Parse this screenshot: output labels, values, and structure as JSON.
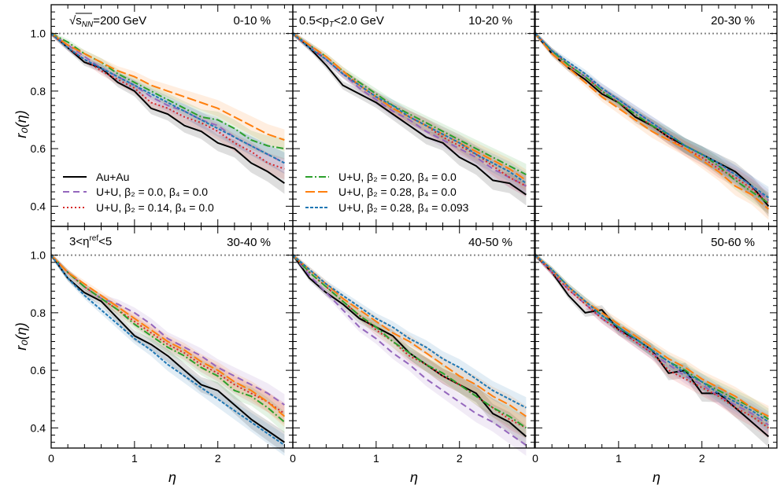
{
  "figure": {
    "header_left": "√s",
    "header_sub": "NN",
    "header_right": "=200 GeV",
    "pt_text": "0.5<p",
    "pt_sub": "T",
    "pt_tail": "<2.0 GeV",
    "eta_ref_pre": "3<η",
    "eta_ref_sup": "ref",
    "eta_ref_tail": "<5",
    "xlabel": "η",
    "ylabel": "r₀(η)"
  },
  "legend": {
    "left": [
      "Au+Au",
      "U+U, β₂ = 0.0,  β₄ = 0.0",
      "U+U, β₂ = 0.14,  β₄ = 0.0"
    ],
    "right": [
      "U+U, β₂ = 0.20,  β₄ = 0.0",
      "U+U, β₂ = 0.28,  β₄ = 0.0",
      "U+U, β₂ = 0.28,  β₄ = 0.093"
    ]
  },
  "chart_data": {
    "type": "line",
    "title": "",
    "xlabel": "η",
    "ylabel": "r₀(η)",
    "xlim": [
      0,
      2.9
    ],
    "ylim": [
      0.33,
      1.1
    ],
    "x_ticks": [
      "0",
      "1",
      "2"
    ],
    "y_ticks": [
      "0.4",
      "0.6",
      "0.8",
      "1.0"
    ],
    "reference_line": 1.0,
    "x": [
      0,
      0.2,
      0.4,
      0.6,
      0.8,
      1.0,
      1.2,
      1.4,
      1.6,
      1.8,
      2.0,
      2.2,
      2.4,
      2.6,
      2.8
    ],
    "series_styles": [
      {
        "name": "Au+Au",
        "color": "#000000",
        "dash": ""
      },
      {
        "name": "U+U, β₂ = 0.0, β₄ = 0.0",
        "color": "#9467bd",
        "dash": "8,5"
      },
      {
        "name": "U+U, β₂ = 0.14, β₄ = 0.0",
        "color": "#d62728",
        "dash": "2,3"
      },
      {
        "name": "U+U, β₂ = 0.20, β₄ = 0.0",
        "color": "#2ca02c",
        "dash": "9,3,2,3"
      },
      {
        "name": "U+U, β₂ = 0.28, β₄ = 0.0",
        "color": "#ff7f0e",
        "dash": "12,4"
      },
      {
        "name": "U+U, β₂ = 0.28, β₄ = 0.093",
        "color": "#1f77b4",
        "dash": "4,2"
      }
    ],
    "panels": [
      {
        "centrality": "0-10 %",
        "series": [
          {
            "name": "Au+Au",
            "values": [
              1.0,
              0.95,
              0.9,
              0.88,
              0.83,
              0.8,
              0.74,
              0.72,
              0.68,
              0.66,
              0.62,
              0.6,
              0.55,
              0.52,
              0.48
            ]
          },
          {
            "name": "U+U, β₂ = 0.0, β₄ = 0.0",
            "values": [
              1.0,
              0.96,
              0.92,
              0.88,
              0.85,
              0.82,
              0.78,
              0.75,
              0.73,
              0.7,
              0.68,
              0.64,
              0.61,
              0.58,
              0.55
            ]
          },
          {
            "name": "U+U, β₂ = 0.14, β₄ = 0.0",
            "values": [
              1.0,
              0.95,
              0.91,
              0.87,
              0.84,
              0.81,
              0.76,
              0.74,
              0.71,
              0.69,
              0.66,
              0.62,
              0.59,
              0.55,
              0.53
            ]
          },
          {
            "name": "U+U, β₂ = 0.20, β₄ = 0.0",
            "values": [
              1.0,
              0.97,
              0.93,
              0.9,
              0.86,
              0.83,
              0.8,
              0.77,
              0.74,
              0.71,
              0.7,
              0.67,
              0.63,
              0.61,
              0.6
            ]
          },
          {
            "name": "U+U, β₂ = 0.28, β₄ = 0.0",
            "values": [
              1.0,
              0.96,
              0.93,
              0.9,
              0.87,
              0.85,
              0.82,
              0.8,
              0.78,
              0.76,
              0.74,
              0.71,
              0.68,
              0.65,
              0.63
            ]
          },
          {
            "name": "U+U, β₂ = 0.28, β₄ = 0.093",
            "values": [
              1.0,
              0.95,
              0.91,
              0.88,
              0.85,
              0.82,
              0.79,
              0.76,
              0.73,
              0.7,
              0.67,
              0.64,
              0.61,
              0.58,
              0.55
            ]
          }
        ]
      },
      {
        "centrality": "10-20 %",
        "series": [
          {
            "name": "Au+Au",
            "values": [
              1.0,
              0.95,
              0.89,
              0.82,
              0.79,
              0.76,
              0.72,
              0.68,
              0.64,
              0.62,
              0.57,
              0.54,
              0.49,
              0.48,
              0.44
            ]
          },
          {
            "name": "U+U, β₂ = 0.0, β₄ = 0.0",
            "values": [
              1.0,
              0.96,
              0.91,
              0.86,
              0.81,
              0.77,
              0.73,
              0.7,
              0.66,
              0.63,
              0.6,
              0.57,
              0.53,
              0.5,
              0.47
            ]
          },
          {
            "name": "U+U, β₂ = 0.14, β₄ = 0.0",
            "values": [
              1.0,
              0.95,
              0.91,
              0.86,
              0.82,
              0.78,
              0.74,
              0.71,
              0.68,
              0.64,
              0.61,
              0.58,
              0.54,
              0.5,
              0.47
            ]
          },
          {
            "name": "U+U, β₂ = 0.20, β₄ = 0.0",
            "values": [
              1.0,
              0.96,
              0.92,
              0.87,
              0.83,
              0.79,
              0.75,
              0.72,
              0.69,
              0.66,
              0.63,
              0.6,
              0.57,
              0.54,
              0.51
            ]
          },
          {
            "name": "U+U, β₂ = 0.28, β₄ = 0.0",
            "values": [
              1.0,
              0.96,
              0.92,
              0.87,
              0.82,
              0.78,
              0.74,
              0.71,
              0.68,
              0.65,
              0.62,
              0.59,
              0.56,
              0.53,
              0.49
            ]
          },
          {
            "name": "U+U, β₂ = 0.28, β₄ = 0.093",
            "values": [
              1.0,
              0.95,
              0.91,
              0.86,
              0.82,
              0.78,
              0.75,
              0.71,
              0.68,
              0.65,
              0.62,
              0.58,
              0.55,
              0.52,
              0.48
            ]
          }
        ]
      },
      {
        "centrality": "20-30 %",
        "series": [
          {
            "name": "Au+Au",
            "values": [
              1.0,
              0.93,
              0.88,
              0.84,
              0.79,
              0.76,
              0.71,
              0.68,
              0.64,
              0.61,
              0.58,
              0.55,
              0.52,
              0.47,
              0.4
            ]
          },
          {
            "name": "U+U, β₂ = 0.0, β₄ = 0.0",
            "values": [
              1.0,
              0.94,
              0.89,
              0.85,
              0.81,
              0.77,
              0.73,
              0.69,
              0.65,
              0.61,
              0.58,
              0.54,
              0.51,
              0.47,
              0.42
            ]
          },
          {
            "name": "U+U, β₂ = 0.14, β₄ = 0.0",
            "values": [
              1.0,
              0.94,
              0.89,
              0.85,
              0.8,
              0.76,
              0.72,
              0.68,
              0.64,
              0.6,
              0.57,
              0.53,
              0.5,
              0.46,
              0.41
            ]
          },
          {
            "name": "U+U, β₂ = 0.20, β₄ = 0.0",
            "values": [
              1.0,
              0.94,
              0.89,
              0.85,
              0.8,
              0.76,
              0.72,
              0.68,
              0.65,
              0.61,
              0.58,
              0.54,
              0.49,
              0.45,
              0.41
            ]
          },
          {
            "name": "U+U, β₂ = 0.28, β₄ = 0.0",
            "values": [
              1.0,
              0.93,
              0.88,
              0.83,
              0.78,
              0.74,
              0.7,
              0.66,
              0.63,
              0.6,
              0.56,
              0.52,
              0.47,
              0.44,
              0.39
            ]
          },
          {
            "name": "U+U, β₂ = 0.28, β₄ = 0.093",
            "values": [
              1.0,
              0.94,
              0.9,
              0.86,
              0.81,
              0.77,
              0.73,
              0.69,
              0.65,
              0.61,
              0.58,
              0.55,
              0.51,
              0.47,
              0.43
            ]
          }
        ]
      },
      {
        "centrality": "30-40 %",
        "series": [
          {
            "name": "Au+Au",
            "values": [
              1.0,
              0.92,
              0.87,
              0.84,
              0.78,
              0.72,
              0.69,
              0.65,
              0.6,
              0.55,
              0.53,
              0.48,
              0.43,
              0.39,
              0.35
            ]
          },
          {
            "name": "U+U, β₂ = 0.0, β₄ = 0.0",
            "values": [
              1.0,
              0.94,
              0.89,
              0.85,
              0.83,
              0.8,
              0.76,
              0.71,
              0.68,
              0.65,
              0.61,
              0.58,
              0.55,
              0.52,
              0.48
            ]
          },
          {
            "name": "U+U, β₂ = 0.14, β₄ = 0.0",
            "values": [
              1.0,
              0.94,
              0.89,
              0.85,
              0.81,
              0.77,
              0.73,
              0.69,
              0.66,
              0.62,
              0.59,
              0.55,
              0.52,
              0.49,
              0.45
            ]
          },
          {
            "name": "U+U, β₂ = 0.20, β₄ = 0.0",
            "values": [
              1.0,
              0.94,
              0.89,
              0.85,
              0.81,
              0.76,
              0.72,
              0.68,
              0.65,
              0.61,
              0.58,
              0.53,
              0.51,
              0.47,
              0.42
            ]
          },
          {
            "name": "U+U, β₂ = 0.28, β₄ = 0.0",
            "values": [
              1.0,
              0.94,
              0.9,
              0.86,
              0.82,
              0.78,
              0.74,
              0.7,
              0.67,
              0.63,
              0.6,
              0.56,
              0.53,
              0.49,
              0.44
            ]
          },
          {
            "name": "U+U, β₂ = 0.28, β₄ = 0.093",
            "values": [
              1.0,
              0.92,
              0.86,
              0.81,
              0.76,
              0.71,
              0.67,
              0.62,
              0.58,
              0.54,
              0.5,
              0.46,
              0.42,
              0.38,
              0.34
            ]
          }
        ]
      },
      {
        "centrality": "40-50 %",
        "series": [
          {
            "name": "Au+Au",
            "values": [
              1.0,
              0.92,
              0.87,
              0.83,
              0.78,
              0.75,
              0.72,
              0.66,
              0.62,
              0.58,
              0.55,
              0.52,
              0.45,
              0.42,
              0.37
            ]
          },
          {
            "name": "U+U, β₂ = 0.0, β₄ = 0.0",
            "values": [
              1.0,
              0.93,
              0.87,
              0.81,
              0.75,
              0.71,
              0.66,
              0.62,
              0.57,
              0.53,
              0.49,
              0.45,
              0.42,
              0.38,
              0.34
            ]
          },
          {
            "name": "U+U, β₂ = 0.14, β₄ = 0.0",
            "values": [
              1.0,
              0.94,
              0.89,
              0.84,
              0.79,
              0.74,
              0.7,
              0.65,
              0.62,
              0.58,
              0.55,
              0.51,
              0.47,
              0.43,
              0.4
            ]
          },
          {
            "name": "U+U, β₂ = 0.20, β₄ = 0.0",
            "values": [
              1.0,
              0.94,
              0.89,
              0.84,
              0.79,
              0.75,
              0.7,
              0.66,
              0.62,
              0.59,
              0.55,
              0.51,
              0.47,
              0.44,
              0.4
            ]
          },
          {
            "name": "U+U, β₂ = 0.28, β₄ = 0.0",
            "values": [
              1.0,
              0.95,
              0.9,
              0.85,
              0.81,
              0.77,
              0.73,
              0.7,
              0.66,
              0.62,
              0.58,
              0.55,
              0.51,
              0.48,
              0.44
            ]
          },
          {
            "name": "U+U, β₂ = 0.28, β₄ = 0.093",
            "values": [
              1.0,
              0.95,
              0.9,
              0.86,
              0.82,
              0.78,
              0.75,
              0.71,
              0.68,
              0.64,
              0.61,
              0.57,
              0.53,
              0.5,
              0.47
            ]
          }
        ]
      },
      {
        "centrality": "50-60 %",
        "series": [
          {
            "name": "Au+Au",
            "values": [
              1.0,
              0.94,
              0.86,
              0.8,
              0.81,
              0.74,
              0.71,
              0.67,
              0.59,
              0.6,
              0.52,
              0.52,
              0.47,
              0.42,
              0.37
            ]
          },
          {
            "name": "U+U, β₂ = 0.0, β₄ = 0.0",
            "values": [
              1.0,
              0.94,
              0.88,
              0.83,
              0.78,
              0.74,
              0.7,
              0.66,
              0.62,
              0.58,
              0.55,
              0.51,
              0.48,
              0.45,
              0.41
            ]
          },
          {
            "name": "U+U, β₂ = 0.14, β₄ = 0.0",
            "values": [
              1.0,
              0.94,
              0.88,
              0.83,
              0.78,
              0.74,
              0.7,
              0.66,
              0.6,
              0.57,
              0.54,
              0.51,
              0.47,
              0.44,
              0.4
            ]
          },
          {
            "name": "U+U, β₂ = 0.20, β₄ = 0.0",
            "values": [
              1.0,
              0.95,
              0.89,
              0.84,
              0.79,
              0.75,
              0.71,
              0.67,
              0.63,
              0.6,
              0.56,
              0.53,
              0.5,
              0.47,
              0.43
            ]
          },
          {
            "name": "U+U, β₂ = 0.28, β₄ = 0.0",
            "values": [
              1.0,
              0.95,
              0.89,
              0.84,
              0.8,
              0.76,
              0.72,
              0.68,
              0.64,
              0.61,
              0.57,
              0.54,
              0.51,
              0.47,
              0.44
            ]
          },
          {
            "name": "U+U, β₂ = 0.28, β₄ = 0.093",
            "values": [
              1.0,
              0.95,
              0.89,
              0.84,
              0.79,
              0.75,
              0.71,
              0.67,
              0.63,
              0.59,
              0.56,
              0.52,
              0.49,
              0.46,
              0.42
            ]
          }
        ]
      }
    ]
  }
}
